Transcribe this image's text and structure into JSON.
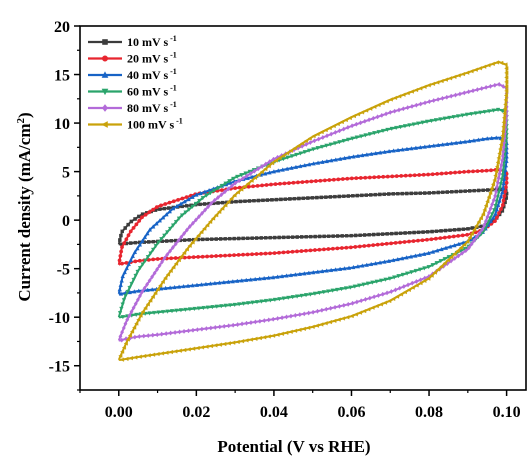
{
  "chart_data": {
    "type": "line",
    "xlabel": "Potential (V vs RHE)",
    "ylabel": {
      "main": "Current density (mA/cm",
      "sup": "2",
      "close": ")"
    },
    "xlim": [
      -0.01,
      0.105
    ],
    "ylim": [
      -17.5,
      20
    ],
    "xticks": [
      "0.00",
      "0.02",
      "0.04",
      "0.06",
      "0.08",
      "0.10"
    ],
    "yticks": [
      "20",
      "15",
      "10",
      "5",
      "0",
      "-5",
      "-10",
      "-15"
    ],
    "grid": false,
    "legend_position": "top-left",
    "series": [
      {
        "name": "10 mV s",
        "sup": "-1",
        "color": "#3c3c3c",
        "marker": "square",
        "x": [
          0.0,
          0.0008,
          0.003,
          0.006,
          0.01,
          0.02,
          0.03,
          0.04,
          0.05,
          0.06,
          0.07,
          0.08,
          0.09,
          0.095,
          0.098,
          0.1,
          0.1,
          0.099,
          0.097,
          0.094,
          0.09,
          0.08,
          0.07,
          0.06,
          0.05,
          0.04,
          0.03,
          0.02,
          0.01,
          0.005,
          0.002,
          0.0005,
          0.0
        ],
        "y": [
          -2.5,
          -1.2,
          -0.2,
          0.6,
          1.1,
          1.6,
          1.9,
          2.1,
          2.3,
          2.5,
          2.7,
          2.8,
          3.0,
          3.1,
          3.2,
          3.1,
          2.4,
          1.0,
          0.0,
          -0.6,
          -0.9,
          -1.2,
          -1.4,
          -1.6,
          -1.7,
          -1.8,
          -1.9,
          -2.0,
          -2.2,
          -2.3,
          -2.4,
          -2.5,
          -2.5
        ]
      },
      {
        "name": "20 mV s",
        "sup": "-1",
        "color": "#e8252f",
        "marker": "circle",
        "x": [
          0.0,
          0.0008,
          0.003,
          0.006,
          0.01,
          0.02,
          0.03,
          0.04,
          0.05,
          0.06,
          0.07,
          0.08,
          0.09,
          0.095,
          0.098,
          0.1,
          0.1,
          0.099,
          0.097,
          0.094,
          0.09,
          0.08,
          0.07,
          0.06,
          0.05,
          0.04,
          0.03,
          0.02,
          0.01,
          0.005,
          0.002,
          0.0005,
          0.0
        ],
        "y": [
          -4.6,
          -2.8,
          -1.2,
          0.3,
          1.4,
          2.7,
          3.3,
          3.7,
          4.0,
          4.3,
          4.5,
          4.7,
          5.0,
          5.1,
          5.2,
          5.0,
          3.8,
          1.5,
          -0.1,
          -1.0,
          -1.5,
          -2.0,
          -2.4,
          -2.8,
          -3.1,
          -3.4,
          -3.6,
          -3.8,
          -4.0,
          -4.2,
          -4.4,
          -4.5,
          -4.6
        ]
      },
      {
        "name": "40 mV s",
        "sup": "-1",
        "color": "#1763c6",
        "marker": "triangle-up",
        "x": [
          0.0,
          0.001,
          0.004,
          0.008,
          0.014,
          0.02,
          0.03,
          0.04,
          0.05,
          0.06,
          0.07,
          0.08,
          0.09,
          0.095,
          0.098,
          0.1,
          0.1,
          0.099,
          0.097,
          0.094,
          0.09,
          0.08,
          0.07,
          0.06,
          0.05,
          0.04,
          0.03,
          0.02,
          0.01,
          0.005,
          0.002,
          0.0005,
          0.0
        ],
        "y": [
          -7.6,
          -5.8,
          -3.4,
          -1.0,
          1.2,
          2.6,
          4.0,
          5.0,
          5.8,
          6.5,
          7.1,
          7.6,
          8.1,
          8.4,
          8.5,
          8.2,
          6.2,
          3.0,
          0.5,
          -1.2,
          -2.2,
          -3.4,
          -4.2,
          -4.9,
          -5.4,
          -5.9,
          -6.3,
          -6.7,
          -7.1,
          -7.3,
          -7.5,
          -7.6,
          -7.6
        ]
      },
      {
        "name": "60 mV s",
        "sup": "-1",
        "color": "#2aa46b",
        "marker": "triangle-down",
        "x": [
          0.0,
          0.0015,
          0.005,
          0.01,
          0.016,
          0.022,
          0.03,
          0.04,
          0.05,
          0.06,
          0.07,
          0.08,
          0.09,
          0.095,
          0.098,
          0.1,
          0.1,
          0.099,
          0.097,
          0.094,
          0.09,
          0.08,
          0.07,
          0.06,
          0.05,
          0.04,
          0.03,
          0.02,
          0.01,
          0.005,
          0.002,
          0.0005,
          0.0
        ],
        "y": [
          -10.0,
          -8.0,
          -5.2,
          -2.4,
          0.4,
          2.4,
          4.4,
          6.0,
          7.3,
          8.4,
          9.4,
          10.2,
          10.9,
          11.2,
          11.4,
          11.1,
          8.6,
          4.6,
          1.2,
          -1.2,
          -2.8,
          -4.8,
          -6.0,
          -6.9,
          -7.6,
          -8.2,
          -8.7,
          -9.1,
          -9.5,
          -9.7,
          -9.9,
          -10.0,
          -10.0
        ]
      },
      {
        "name": "80 mV s",
        "sup": "-1",
        "color": "#b36bd9",
        "marker": "diamond",
        "x": [
          0.0,
          0.002,
          0.006,
          0.012,
          0.018,
          0.024,
          0.03,
          0.04,
          0.05,
          0.06,
          0.07,
          0.08,
          0.09,
          0.095,
          0.098,
          0.1,
          0.1,
          0.099,
          0.097,
          0.094,
          0.09,
          0.08,
          0.07,
          0.06,
          0.05,
          0.04,
          0.03,
          0.02,
          0.01,
          0.005,
          0.002,
          0.0005,
          0.0
        ],
        "y": [
          -12.4,
          -10.4,
          -7.4,
          -3.8,
          -0.8,
          1.8,
          3.8,
          6.3,
          8.1,
          9.7,
          11.1,
          12.2,
          13.2,
          13.7,
          14.0,
          13.6,
          10.8,
          6.4,
          2.4,
          -0.8,
          -3.0,
          -5.8,
          -7.4,
          -8.6,
          -9.5,
          -10.2,
          -10.8,
          -11.3,
          -11.8,
          -12.0,
          -12.2,
          -12.4,
          -12.4
        ]
      },
      {
        "name": "100 mV s",
        "sup": "-1",
        "color": "#c9a20a",
        "marker": "triangle-left",
        "x": [
          0.0,
          0.002,
          0.006,
          0.012,
          0.018,
          0.024,
          0.03,
          0.04,
          0.05,
          0.06,
          0.07,
          0.08,
          0.09,
          0.095,
          0.098,
          0.1,
          0.1,
          0.099,
          0.097,
          0.094,
          0.09,
          0.08,
          0.07,
          0.06,
          0.05,
          0.04,
          0.03,
          0.02,
          0.01,
          0.005,
          0.002,
          0.0005,
          0.0
        ],
        "y": [
          -14.4,
          -12.6,
          -9.6,
          -6.0,
          -2.8,
          0.0,
          2.6,
          6.0,
          8.6,
          10.6,
          12.4,
          13.9,
          15.2,
          15.9,
          16.3,
          16.0,
          13.2,
          8.6,
          4.2,
          0.6,
          -2.2,
          -6.0,
          -8.3,
          -9.9,
          -11.0,
          -11.9,
          -12.6,
          -13.2,
          -13.8,
          -14.1,
          -14.3,
          -14.4,
          -14.4
        ]
      }
    ]
  }
}
